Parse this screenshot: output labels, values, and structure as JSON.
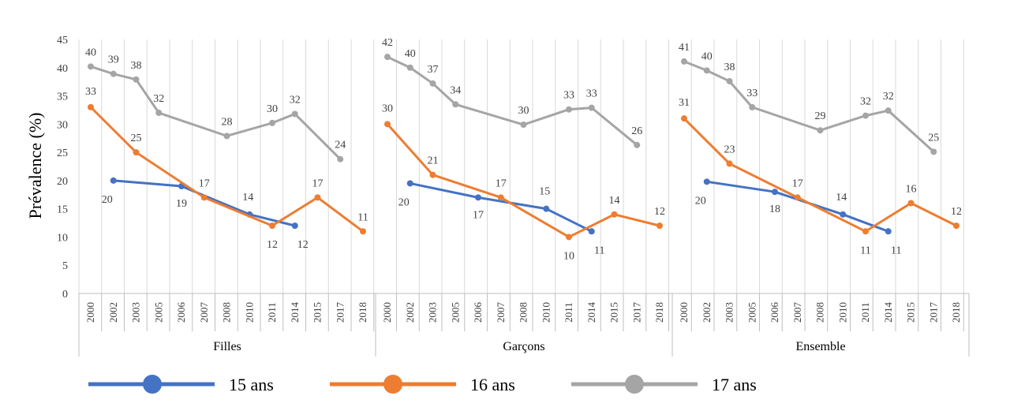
{
  "chart_data": {
    "type": "line",
    "ylabel": "Prévalence (%)",
    "ylim": [
      0,
      45
    ],
    "yticks": [
      0,
      5,
      10,
      15,
      20,
      25,
      30,
      35,
      40,
      45
    ],
    "grid": "vertical",
    "legend_position": "bottom",
    "colors": {
      "15 ans": "#4472C4",
      "16 ans": "#ED7D31",
      "17 ans": "#A5A5A5"
    },
    "groups": [
      {
        "name": "Filles",
        "x": [
          "2000",
          "2002",
          "2003",
          "2005",
          "2006",
          "2007",
          "2008",
          "2010",
          "2011",
          "2014",
          "2015",
          "2017",
          "2018"
        ],
        "series": [
          {
            "name": "15 ans",
            "values": [
              null,
              20,
              null,
              null,
              19,
              null,
              null,
              14,
              null,
              12,
              null,
              null,
              null
            ],
            "labels": [
              null,
              "20",
              null,
              null,
              "19",
              null,
              null,
              "14",
              null,
              "12",
              null,
              null,
              null
            ]
          },
          {
            "name": "16 ans",
            "values": [
              33,
              null,
              25,
              null,
              null,
              17,
              null,
              null,
              12,
              null,
              17,
              null,
              11
            ],
            "labels": [
              "33",
              null,
              "25",
              null,
              null,
              "17",
              null,
              null,
              "12",
              null,
              "17",
              null,
              "11"
            ]
          },
          {
            "name": "17 ans",
            "values": [
              40.2,
              38.9,
              37.9,
              32,
              null,
              null,
              27.9,
              null,
              30.2,
              31.8,
              null,
              23.8,
              null
            ],
            "labels": [
              "40",
              "39",
              "38",
              "32",
              null,
              null,
              "28",
              null,
              "30",
              "32",
              null,
              "24",
              null
            ]
          }
        ]
      },
      {
        "name": "Garçons",
        "x": [
          "2000",
          "2002",
          "2003",
          "2005",
          "2006",
          "2007",
          "2008",
          "2010",
          "2011",
          "2014",
          "2015",
          "2017",
          "2018"
        ],
        "series": [
          {
            "name": "15 ans",
            "values": [
              null,
              19.5,
              null,
              null,
              17,
              null,
              null,
              15,
              null,
              11,
              null,
              null,
              null
            ],
            "labels": [
              null,
              "20",
              null,
              null,
              "17",
              null,
              null,
              "15",
              null,
              "11",
              null,
              null,
              null
            ]
          },
          {
            "name": "16 ans",
            "values": [
              30,
              null,
              21,
              null,
              null,
              17,
              null,
              null,
              10,
              null,
              14,
              null,
              12
            ],
            "labels": [
              "30",
              null,
              "21",
              null,
              null,
              "17",
              null,
              null,
              "10",
              null,
              "14",
              null,
              "12"
            ]
          },
          {
            "name": "17 ans",
            "values": [
              41.9,
              40,
              37.2,
              33.5,
              null,
              null,
              29.9,
              null,
              32.6,
              32.9,
              null,
              26.3,
              null
            ],
            "labels": [
              "42",
              "40",
              "37",
              "34",
              null,
              null,
              "30",
              null,
              "33",
              "33",
              null,
              "26",
              null
            ]
          }
        ]
      },
      {
        "name": "Ensemble",
        "x": [
          "2000",
          "2002",
          "2003",
          "2005",
          "2006",
          "2007",
          "2008",
          "2010",
          "2011",
          "2014",
          "2015",
          "2017",
          "2018"
        ],
        "series": [
          {
            "name": "15 ans",
            "values": [
              null,
              19.8,
              null,
              null,
              18,
              null,
              null,
              14,
              null,
              11,
              null,
              null,
              null
            ],
            "labels": [
              null,
              "20",
              null,
              null,
              "18",
              null,
              null,
              "14",
              null,
              "11",
              null,
              null,
              null
            ]
          },
          {
            "name": "16 ans",
            "values": [
              31,
              null,
              23,
              null,
              null,
              17,
              null,
              null,
              11,
              null,
              16,
              null,
              12
            ],
            "labels": [
              "31",
              null,
              "23",
              null,
              null,
              "17",
              null,
              null,
              "11",
              null,
              "16",
              null,
              "12"
            ]
          },
          {
            "name": "17 ans",
            "values": [
              41.1,
              39.5,
              37.6,
              33,
              null,
              null,
              28.9,
              null,
              31.5,
              32.4,
              null,
              25.1,
              null
            ],
            "labels": [
              "41",
              "40",
              "38",
              "33",
              null,
              null,
              "29",
              null,
              "32",
              "32",
              null,
              "25",
              null
            ]
          }
        ]
      }
    ]
  }
}
